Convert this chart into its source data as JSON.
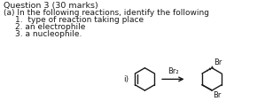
{
  "title_line": "Question 3 (30 marks)",
  "line_a": "(a) In the following reactions, identify the following",
  "item1": "1.  type of reaction taking place",
  "item2": "2. an electrophile",
  "item3": "3. a nucleophile.",
  "label_i": "i)",
  "arrow_label": "Br₂",
  "background_color": "#ffffff",
  "text_color": "#1a1a1a",
  "font_size_title": 6.8,
  "font_size_body": 6.5,
  "font_size_chem": 6.0
}
